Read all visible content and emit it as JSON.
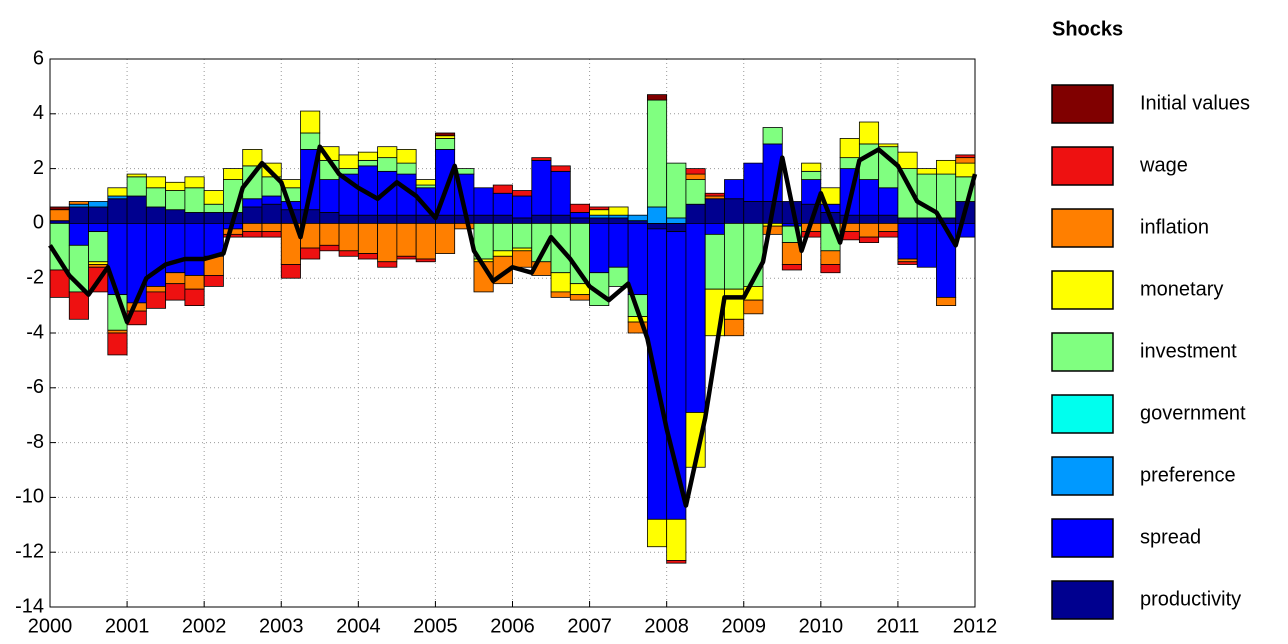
{
  "chart_data": {
    "type": "bar",
    "stacked": true,
    "legend_title": "Shocks",
    "legend_position": "right",
    "grid": true,
    "xlim": [
      2000,
      2012
    ],
    "xticks": [
      2000,
      2001,
      2002,
      2003,
      2004,
      2005,
      2006,
      2007,
      2008,
      2009,
      2010,
      2011,
      2012
    ],
    "ylim": [
      -14,
      6
    ],
    "yticks": [
      -14,
      -12,
      -10,
      -8,
      -6,
      -4,
      -2,
      0,
      2,
      4,
      6
    ],
    "x": [
      2000.25,
      2000.5,
      2000.75,
      2001,
      2001.25,
      2001.5,
      2001.75,
      2002,
      2002.25,
      2002.5,
      2002.75,
      2003,
      2003.25,
      2003.5,
      2003.75,
      2004,
      2004.25,
      2004.5,
      2004.75,
      2005,
      2005.25,
      2005.5,
      2005.75,
      2006,
      2006.25,
      2006.5,
      2006.75,
      2007,
      2007.25,
      2007.5,
      2007.75,
      2008,
      2008.25,
      2008.5,
      2008.75,
      2009,
      2009.25,
      2009.5,
      2009.75,
      2010,
      2010.25,
      2010.5,
      2010.75,
      2011,
      2011.25,
      2011.5,
      2011.75,
      2012
    ],
    "series": [
      {
        "name": "productivity",
        "color": "#00008f",
        "values": [
          0.1,
          0.6,
          0.6,
          0.9,
          1.0,
          0.6,
          0.5,
          0.4,
          0.4,
          0.4,
          0.6,
          0.7,
          0.5,
          0.5,
          0.4,
          0.3,
          0.3,
          0.3,
          0.3,
          0.3,
          0.3,
          0.3,
          0.3,
          0.3,
          0.2,
          0.3,
          0.3,
          0.2,
          0.2,
          0.2,
          0.1,
          -0.2,
          -0.3,
          0.7,
          0.9,
          0.9,
          0.8,
          0.8,
          0.8,
          0.7,
          0.4,
          0.3,
          0.3,
          0.3,
          0.2,
          0.2,
          0.2,
          0.8
        ]
      },
      {
        "name": "spread",
        "color": "#0000ff",
        "values": [
          0,
          -0.8,
          -0.3,
          -2.6,
          -2.9,
          -2.3,
          -1.8,
          -1.9,
          -1.2,
          -0.2,
          0.3,
          0.3,
          0.3,
          2.2,
          1.2,
          1.5,
          1.8,
          1.6,
          1.5,
          1.0,
          2.4,
          1.5,
          1.0,
          0.8,
          0.8,
          2.0,
          1.6,
          0.2,
          -1.8,
          -1.6,
          -2.6,
          -10.6,
          -10.5,
          -6.9,
          -0.4,
          0.7,
          1.4,
          2.1,
          -0.1,
          0.9,
          0.3,
          1.7,
          1.3,
          1.0,
          -1.3,
          -1.6,
          -2.7,
          -0.5
        ]
      },
      {
        "name": "preference",
        "color": "#0099ff",
        "values": [
          0,
          0.1,
          0.2,
          0.1,
          0,
          0,
          0,
          0,
          0,
          0,
          0,
          0,
          0,
          0,
          0,
          0,
          0,
          0,
          0,
          0,
          0,
          0,
          0,
          0,
          0,
          0,
          0,
          0,
          0.1,
          0.1,
          0.2,
          0.6,
          0.2,
          0,
          0,
          0,
          0,
          0,
          0,
          0,
          0,
          0,
          0,
          0,
          0,
          0,
          0,
          0
        ]
      },
      {
        "name": "government",
        "color": "#00ffee",
        "values": [
          0,
          0,
          0,
          0,
          0,
          0,
          0,
          0,
          0,
          0,
          0,
          0,
          0,
          0,
          0,
          0,
          0,
          0,
          0,
          0,
          0,
          0,
          0,
          0,
          0,
          0,
          0,
          0,
          0,
          0,
          0,
          0,
          0,
          0,
          0,
          0,
          0,
          0,
          0,
          0,
          0,
          0,
          0,
          0,
          0,
          0,
          0,
          0
        ]
      },
      {
        "name": "investment",
        "color": "#80ff80",
        "values": [
          -1.7,
          -1.7,
          -1.1,
          -1.3,
          0.7,
          0.7,
          0.7,
          0.9,
          0.3,
          1.2,
          1.2,
          0.7,
          0.5,
          0.6,
          0.7,
          0.2,
          0.2,
          0.5,
          0.4,
          0.1,
          0.4,
          0.2,
          -1.3,
          -1.0,
          -0.9,
          -1.4,
          -1.8,
          -2.2,
          -1.2,
          -0.7,
          -0.8,
          3.9,
          2.0,
          0.9,
          -2.0,
          -2.4,
          -2.3,
          0.6,
          -0.6,
          0.3,
          -1.0,
          0.4,
          1.3,
          1.5,
          1.8,
          1.6,
          1.6,
          0.9
        ]
      },
      {
        "name": "monetary",
        "color": "#ffff00",
        "values": [
          0,
          0,
          -0.1,
          0.3,
          0.1,
          0.4,
          0.3,
          0.4,
          0.5,
          0.4,
          0.6,
          0.5,
          0.3,
          0.8,
          0.5,
          0.5,
          0.3,
          0.4,
          0.5,
          0.2,
          0.1,
          0,
          -0.1,
          -0.2,
          -0.1,
          0,
          -0.7,
          -0.4,
          0.2,
          0.3,
          -0.2,
          -1.0,
          -1.5,
          -2.0,
          -1.7,
          -1.1,
          -0.5,
          -0.1,
          0,
          0.3,
          0.6,
          0.7,
          0.8,
          0.1,
          0.6,
          0.2,
          0.5,
          0.5
        ]
      },
      {
        "name": "inflation",
        "color": "#ff7f00",
        "values": [
          0.4,
          0.1,
          -0.1,
          -0.1,
          -0.3,
          -0.2,
          -0.4,
          -0.5,
          -0.7,
          -0.2,
          -0.3,
          -0.3,
          -1.5,
          -0.9,
          -0.8,
          -1.0,
          -1.1,
          -1.4,
          -1.2,
          -1.3,
          -1.1,
          -0.2,
          -1.1,
          -1.0,
          -0.6,
          -0.5,
          -0.2,
          -0.2,
          0,
          0,
          -0.4,
          0,
          0,
          0.2,
          0.1,
          -0.6,
          -0.5,
          -0.3,
          -0.8,
          -0.3,
          -0.5,
          -0.3,
          -0.5,
          -0.3,
          -0.1,
          0,
          -0.3,
          0.2
        ]
      },
      {
        "name": "wage",
        "color": "#ee1111",
        "values": [
          -1.0,
          -1.0,
          -0.9,
          -0.8,
          -0.5,
          -0.6,
          -0.6,
          -0.6,
          -0.4,
          -0.1,
          -0.2,
          -0.2,
          -0.5,
          -0.4,
          -0.2,
          -0.2,
          -0.2,
          -0.2,
          -0.1,
          -0.1,
          0,
          0,
          0,
          0.3,
          0.2,
          0.1,
          0.2,
          0.3,
          0.1,
          0,
          0,
          0,
          -0.1,
          0.2,
          0.1,
          0,
          0,
          0,
          -0.2,
          -0.2,
          -0.3,
          -0.3,
          -0.2,
          -0.2,
          -0.1,
          0,
          0,
          0.1
        ]
      },
      {
        "name": "Initial values",
        "color": "#800000",
        "values": [
          0.1,
          0,
          0,
          0,
          0,
          0,
          0,
          0,
          0,
          0,
          0,
          0,
          0,
          0,
          0,
          0,
          0,
          0,
          0,
          0,
          0.1,
          0,
          0,
          0,
          0,
          0,
          0,
          0,
          0,
          0,
          0,
          0.2,
          0,
          0,
          0,
          0,
          0,
          0,
          0,
          0,
          0,
          0,
          0,
          0,
          0,
          0,
          0,
          0
        ]
      }
    ],
    "line": {
      "color": "#000000",
      "x": [
        2000,
        2000.25,
        2000.5,
        2000.75,
        2001,
        2001.25,
        2001.5,
        2001.75,
        2002,
        2002.25,
        2002.5,
        2002.75,
        2003,
        2003.25,
        2003.5,
        2003.75,
        2004,
        2004.25,
        2004.5,
        2004.75,
        2005,
        2005.25,
        2005.5,
        2005.75,
        2006,
        2006.25,
        2006.5,
        2006.75,
        2007,
        2007.25,
        2007.5,
        2007.75,
        2008,
        2008.25,
        2008.5,
        2008.75,
        2009,
        2009.25,
        2009.5,
        2009.75,
        2010,
        2010.25,
        2010.5,
        2010.75,
        2011,
        2011.25,
        2011.5,
        2011.75,
        2012
      ],
      "values": [
        -0.8,
        -1.9,
        -2.6,
        -1.6,
        -3.6,
        -2.0,
        -1.5,
        -1.3,
        -1.3,
        -1.1,
        1.3,
        2.2,
        1.5,
        -0.5,
        2.8,
        1.8,
        1.3,
        0.9,
        1.5,
        1.0,
        0.2,
        2.1,
        -1.0,
        -2.1,
        -1.6,
        -1.8,
        -0.5,
        -1.3,
        -2.3,
        -2.8,
        -2.2,
        -4.2,
        -7.5,
        -10.3,
        -7.1,
        -2.7,
        -2.7,
        -1.4,
        2.4,
        -1.0,
        1.1,
        -0.7,
        2.3,
        2.7,
        2.1,
        0.8,
        0.4,
        -0.8,
        1.8
      ]
    }
  }
}
